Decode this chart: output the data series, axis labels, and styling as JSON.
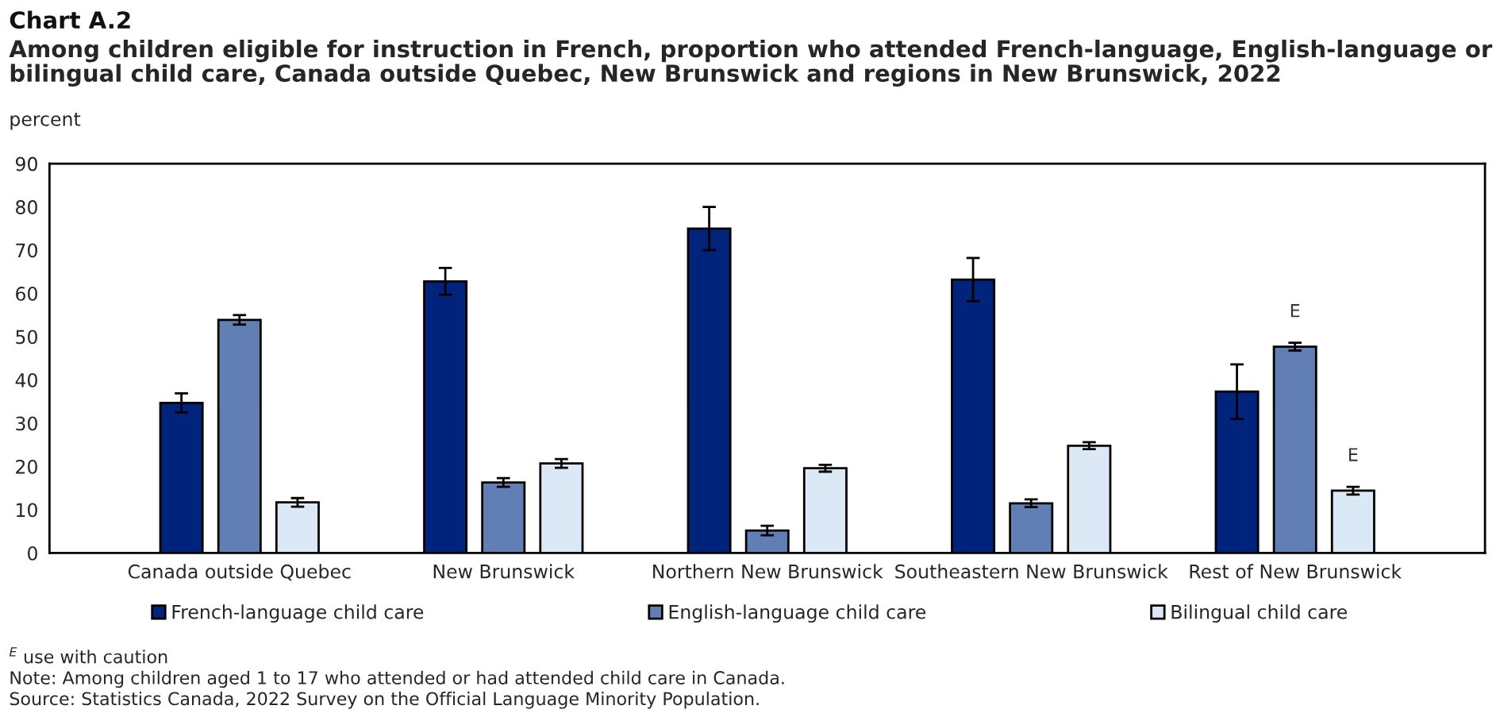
{
  "chart_data": {
    "type": "bar",
    "title": "Chart A.2",
    "subtitle": "Among children eligible for instruction in French, proportion who attended French-language, English-language or bilingual child care, Canada outside Quebec, New Brunswick and regions in New Brunswick, 2022",
    "ylabel": "percent",
    "categories": [
      "Canada outside Quebec",
      "New Brunswick",
      "Northern New Brunswick",
      "Southeastern New Brunswick",
      "Rest of New Brunswick"
    ],
    "series": [
      {
        "name": "French-language child care",
        "color": "#00237c",
        "values": [
          34.7,
          62.8,
          75.0,
          63.2,
          37.3
        ],
        "errors": [
          2.2,
          3.1,
          5.0,
          5.0,
          6.3
        ]
      },
      {
        "name": "English-language child care",
        "color": "#617fb5",
        "values": [
          53.9,
          16.3,
          5.2,
          11.5,
          47.7
        ],
        "errors": [
          1.1,
          1.0,
          1.1,
          0.9,
          0.9
        ],
        "value_labels": [
          null,
          null,
          null,
          null,
          "E"
        ]
      },
      {
        "name": "Bilingual child care",
        "color": "#dbe8f6",
        "values": [
          11.7,
          20.7,
          19.6,
          24.8,
          14.4
        ],
        "errors": [
          1.0,
          1.0,
          0.8,
          0.8,
          0.9
        ],
        "value_labels": [
          null,
          null,
          null,
          null,
          "E"
        ]
      }
    ],
    "ylim": [
      0,
      90
    ],
    "yticks": [
      0,
      10,
      20,
      30,
      40,
      50,
      60,
      70,
      80,
      90
    ],
    "grid": false,
    "legend": "bottom",
    "annotations": [
      "$^{E}$ use with caution",
      "Note: Among children aged 1 to 17 who attended or had attended child care in Canada.",
      "Source: Statistics Canada, 2022 Survey on the Official Language Minority Population."
    ]
  }
}
